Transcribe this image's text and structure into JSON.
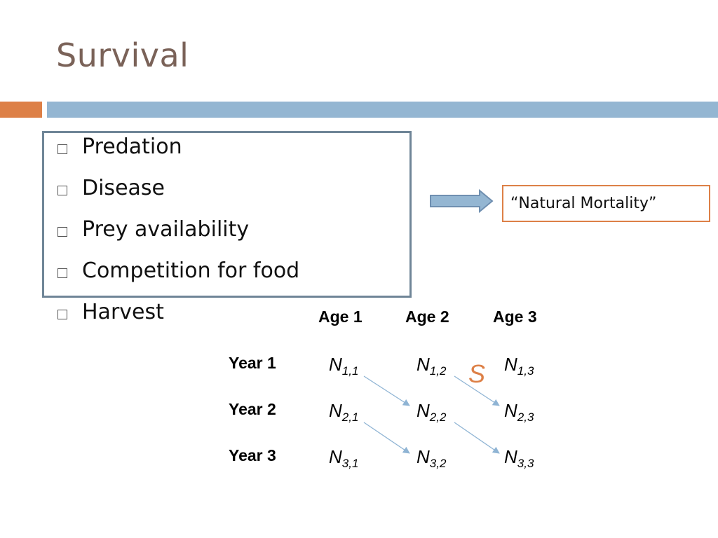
{
  "slide": {
    "title": "Survival",
    "bullets": [
      "Predation",
      "Disease",
      "Prey availability",
      "Competition for food",
      "Harvest"
    ],
    "callout": "“Natural Mortality”",
    "s_label": "S"
  },
  "table": {
    "col_headers": [
      "Age 1",
      "Age 2",
      "Age 3"
    ],
    "row_headers": [
      "Year 1",
      "Year 2",
      "Year 3"
    ],
    "cells": [
      [
        {
          "base": "N",
          "sub": "1,1"
        },
        {
          "base": "N",
          "sub": "1,2"
        },
        {
          "base": "N",
          "sub": "1,3"
        }
      ],
      [
        {
          "base": "N",
          "sub": "2,1"
        },
        {
          "base": "N",
          "sub": "2,2"
        },
        {
          "base": "N",
          "sub": "2,3"
        }
      ],
      [
        {
          "base": "N",
          "sub": "3,1"
        },
        {
          "base": "N",
          "sub": "3,2"
        },
        {
          "base": "N",
          "sub": "3,3"
        }
      ]
    ]
  },
  "colors": {
    "title": "#7a6258",
    "accent_orange": "#dd8047",
    "accent_blue": "#94b6d2",
    "box_border": "#6f8597",
    "transition_arrow": "#8fb4d4"
  }
}
